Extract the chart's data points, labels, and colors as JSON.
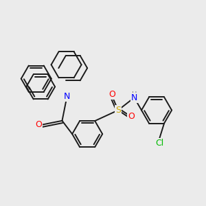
{
  "background_color": "#ebebeb",
  "bond_color": "#1a1a1a",
  "bond_width": 1.4,
  "dbo": 0.06,
  "atom_colors": {
    "N": "#0000ff",
    "O": "#ff0000",
    "S": "#ccaa00",
    "Cl": "#00bb00",
    "H": "#777777"
  },
  "font_size": 8,
  "fig_size": [
    3.0,
    3.0
  ],
  "dpi": 100,
  "xlim": [
    -2.6,
    2.8
  ],
  "ylim": [
    -1.6,
    1.5
  ]
}
